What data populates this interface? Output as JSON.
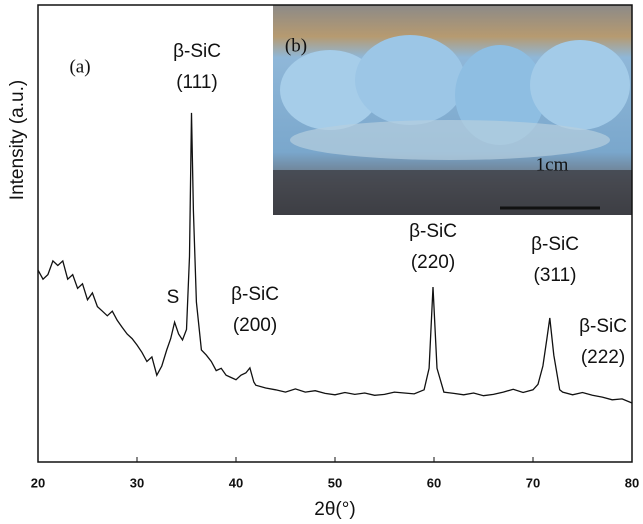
{
  "chart_data": {
    "type": "line",
    "x_label": "2θ(°)",
    "y_label": "Intensity (a.u.)",
    "panel_label": "(a)",
    "x": [
      20,
      20.5,
      21,
      21.5,
      22,
      22.5,
      23,
      23.5,
      24,
      24.5,
      25,
      25.5,
      26,
      26.5,
      27,
      27.5,
      28,
      28.5,
      29,
      29.5,
      30,
      30.5,
      31,
      31.5,
      32,
      32.5,
      33,
      33.4,
      33.8,
      34.2,
      34.6,
      35,
      35.3,
      35.5,
      35.7,
      36,
      36.5,
      37,
      37.5,
      38,
      38.5,
      39,
      39.5,
      40,
      40.5,
      41,
      41.4,
      41.8,
      42,
      43,
      44,
      45,
      46,
      47,
      48,
      49,
      50,
      51,
      52,
      53,
      54,
      55,
      56,
      57,
      58,
      59,
      59.5,
      59.9,
      60.3,
      61,
      62,
      63,
      64,
      65,
      66,
      67,
      68,
      69,
      70,
      70.5,
      71,
      71.4,
      71.7,
      72.1,
      72.7,
      73,
      74,
      75,
      76,
      77,
      78,
      79,
      80
    ],
    "values": [
      42,
      40,
      41,
      44,
      43,
      44,
      40,
      41,
      38,
      39,
      35.5,
      37,
      34,
      33,
      32,
      33,
      31,
      29.5,
      28,
      27,
      25.6,
      24,
      22,
      23,
      19,
      21,
      24.5,
      27,
      30.6,
      28,
      26.7,
      29,
      45,
      76.4,
      55,
      35,
      24.5,
      23.4,
      22,
      20,
      20.5,
      19,
      18.5,
      18,
      19,
      19.5,
      20.6,
      17.5,
      16.8,
      16.2,
      15.8,
      15.3,
      16,
      15.3,
      15.6,
      15,
      14.7,
      15.2,
      14.8,
      15.1,
      14.6,
      14.8,
      15.3,
      15.1,
      14.9,
      15.8,
      20.5,
      38.3,
      20.5,
      15.3,
      15,
      14.7,
      15.1,
      14.5,
      14.8,
      15.3,
      15.9,
      15.2,
      15.8,
      17,
      21,
      27,
      31.5,
      23.4,
      15.8,
      15.3,
      14.7,
      15.2,
      14.6,
      14.2,
      13.6,
      13.8,
      12.9
    ],
    "color": "#111111",
    "xlim": [
      20,
      80
    ],
    "xticks": [
      20,
      30,
      40,
      50,
      60,
      70,
      80
    ],
    "ylim": [
      0,
      100
    ],
    "peak_labels": [
      [
        "β-SiC",
        "(111)"
      ],
      [
        "S"
      ],
      [
        "β-SiC",
        "(200)"
      ],
      [
        "β-SiC",
        "(220)"
      ],
      [
        "β-SiC",
        "(311)"
      ],
      [
        "β-SiC",
        "(222)"
      ]
    ],
    "inset_label": "(b)",
    "scale_label": "1cm"
  }
}
